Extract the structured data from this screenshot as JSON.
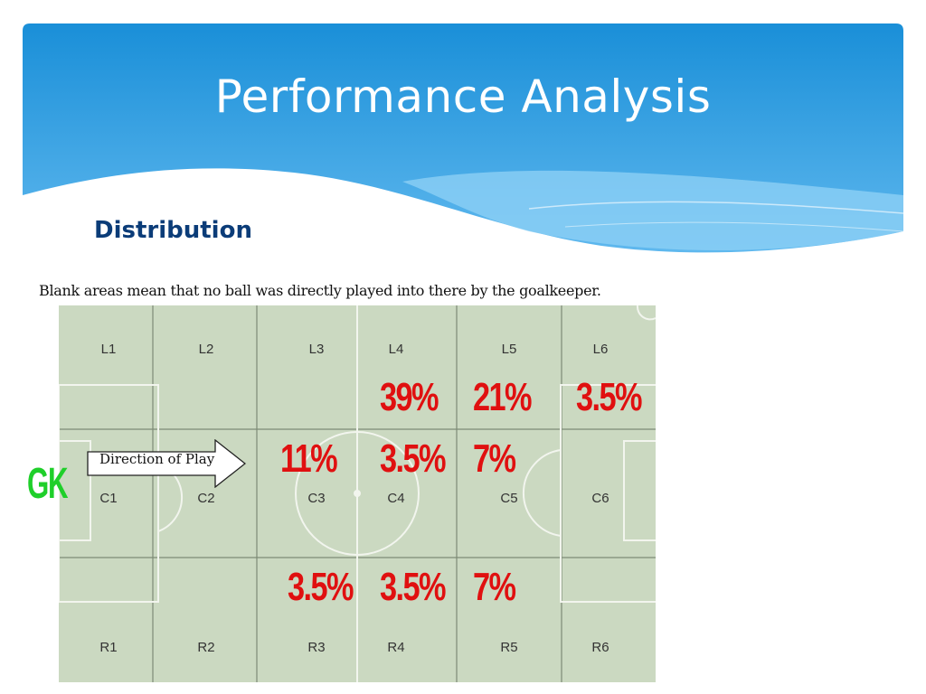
{
  "slide": {
    "title": "Performance Analysis",
    "section_heading": "Distribution",
    "caption": "Blank areas mean that no ball was directly played into there by the goalkeeper.",
    "banner_color": "#1a8fd8"
  },
  "pitch": {
    "direction_label": "Direction of Play",
    "goalkeeper_label": "GK",
    "zone_labels": {
      "L1": "L1",
      "L2": "L2",
      "L3": "L3",
      "L4": "L4",
      "L5": "L5",
      "L6": "L6",
      "C1": "C1",
      "C2": "C2",
      "C3": "C3",
      "C4": "C4",
      "C5": "C5",
      "C6": "C6",
      "R1": "R1",
      "R2": "R2",
      "R3": "R3",
      "R4": "R4",
      "R5": "R5",
      "R6": "R6"
    },
    "percentages": {
      "L4": "39%",
      "L5": "21%",
      "L6": "3.5%",
      "C3": "11%",
      "C4": "3.5%",
      "C5": "7%",
      "R3": "3.5%",
      "R4": "3.5%",
      "R5": "7%"
    },
    "percent_color": "#e01010",
    "gk_color": "#1fcf2a"
  }
}
